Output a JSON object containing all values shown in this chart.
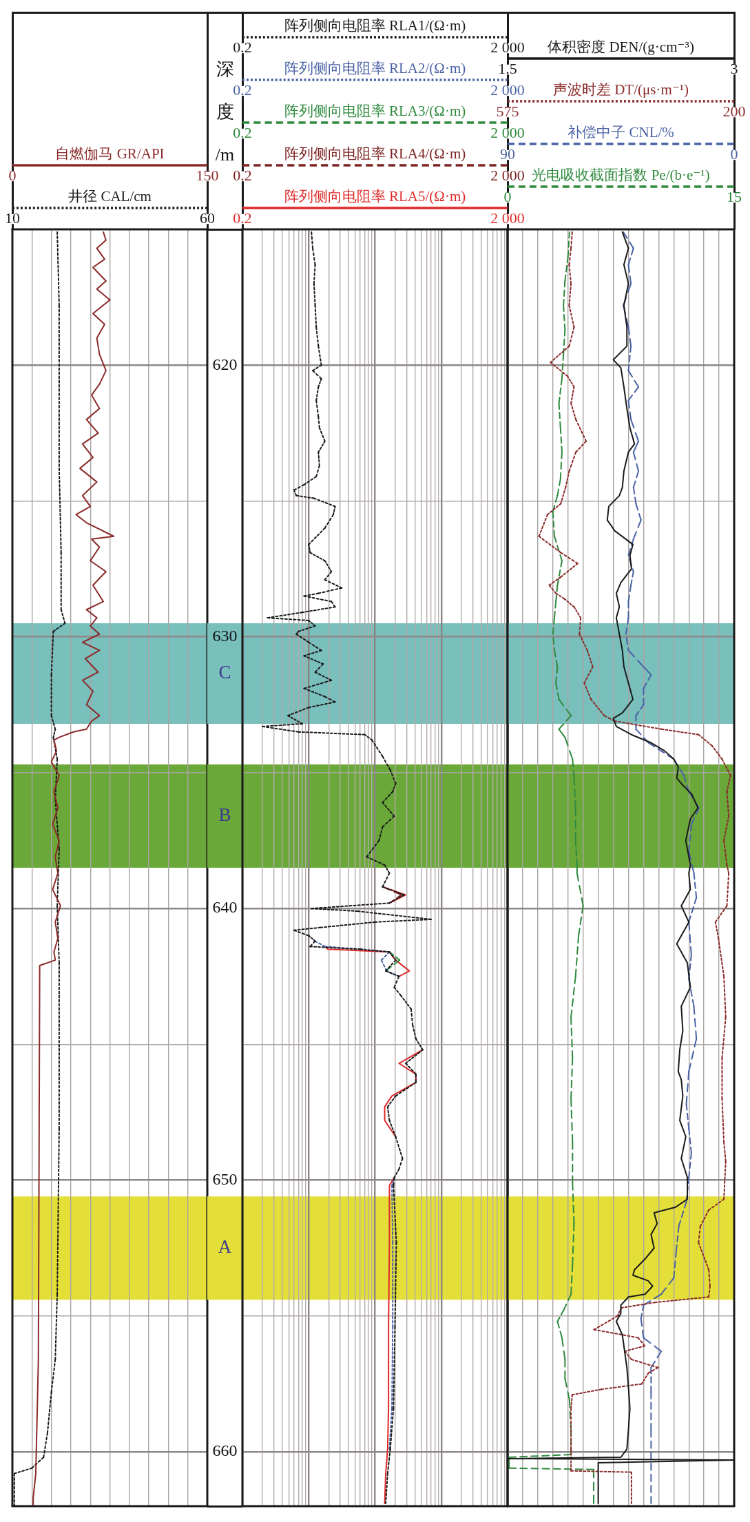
{
  "chart_data": [
    {
      "type": "line",
      "orientation": "horizontal",
      "xlabel": "自燃伽马 GR/API",
      "x2label": "井径 CAL/cm",
      "xlim": [
        0,
        150
      ],
      "xticks": [
        0,
        {
          "value": 15,
          "label": null
        },
        {
          "value": 30,
          "label": null
        },
        {
          "value": 45,
          "label": null
        },
        {
          "value": 60,
          "label": null
        },
        {
          "value": 75,
          "label": null
        },
        {
          "value": 90,
          "label": null
        },
        {
          "value": 105,
          "label": null
        },
        {
          "value": 120,
          "label": null
        },
        {
          "value": 135,
          "label": null
        },
        150
      ],
      "x2lim": [
        10,
        60
      ],
      "x2ticks": [
        10,
        60
      ],
      "ylim": [
        662,
        615
      ],
      "yticks": [
        620,
        {
          "value": 625,
          "label": null
        },
        630,
        {
          "value": 635,
          "label": null
        },
        640,
        {
          "value": 645,
          "label": null
        },
        650,
        {
          "value": 655,
          "label": null
        },
        660
      ],
      "grid": true,
      "tick_labels": "x",
      "bands": [
        {
          "axis": "y",
          "from": 629.5,
          "to": 633.2,
          "color": "#79bfbc"
        },
        {
          "axis": "y",
          "from": 634.7,
          "to": 638.5,
          "color": "#6ba83a"
        },
        {
          "axis": "y",
          "from": 650.6,
          "to": 654.4,
          "color": "#e3df38"
        }
      ],
      "series": [
        {
          "color": "#8b2a2a",
          "line_style": "solid",
          "x": [
            615.1,
            615.4,
            615.7,
            616.1,
            616.4,
            616.9,
            617.2,
            617.6,
            618.1,
            618.5,
            619.0,
            619.6,
            620.2,
            620.7,
            621.1,
            621.6,
            622.0,
            622.5,
            622.9,
            623.4,
            623.8,
            624.3,
            624.8,
            625.2,
            625.5,
            625.8,
            626.3,
            626.4,
            626.7,
            627.2,
            627.6,
            628.1,
            628.7,
            629.0,
            629.3,
            629.6,
            629.9,
            630.2,
            630.5,
            630.8,
            631.3,
            631.6,
            632.0,
            632.5,
            632.9,
            633.1,
            633.4,
            633.5,
            633.7,
            633.8,
            634.2,
            634.6,
            635.1,
            635.7,
            636.3,
            636.9,
            637.5,
            638.1,
            638.7,
            639.3,
            639.9,
            640.5,
            641.1,
            641.6,
            641.9,
            642.1,
            656.6,
            660.8,
            661.7,
            662.0
          ],
          "values": [
            70,
            72,
            65,
            71,
            62,
            72,
            65,
            75,
            62,
            71,
            65,
            67,
            72,
            67,
            61,
            67,
            57,
            66,
            54,
            62,
            52,
            65,
            54,
            60,
            49,
            57,
            78,
            61,
            67,
            60,
            72,
            62,
            70,
            57,
            65,
            60,
            67,
            54,
            67,
            56,
            66,
            54,
            62,
            57,
            67,
            61,
            57,
            47,
            36,
            32,
            34,
            30,
            36,
            32,
            35,
            31,
            36,
            33,
            35,
            31,
            37,
            33,
            35,
            32,
            33,
            21,
            20,
            18,
            16,
            16
          ]
        },
        {
          "color": "#1a1a1a",
          "line_style": "dotted",
          "axis": "x2",
          "x": [
            615.1,
            617.8,
            620.8,
            623.8,
            626.9,
            629.0,
            629.5,
            629.8,
            631.4,
            632.9,
            633.4,
            633.7,
            634.5,
            636.0,
            637.8,
            639.9,
            642.0,
            648.1,
            654.2,
            656.6,
            657.8,
            659.3,
            660.2,
            660.6,
            660.8,
            662.0
          ],
          "values": [
            21.5,
            22,
            22,
            22,
            22.5,
            22.5,
            23.5,
            20.5,
            20,
            20,
            21,
            20.5,
            21.5,
            21,
            22,
            21.5,
            22,
            22,
            21.5,
            21,
            20,
            19,
            18,
            15,
            10.5,
            10.5
          ]
        }
      ]
    },
    {
      "type": "line",
      "orientation": "horizontal",
      "xlabel": "阵列侧向电阻率 RLA1/(Ω·m)",
      "log": "x",
      "xlim": [
        0.2,
        2000
      ],
      "xticks": [
        0.2,
        {
          "value": 2000,
          "label": "2 000"
        }
      ],
      "ylim": [
        662,
        615
      ],
      "yticks": [
        620,
        630,
        640,
        650,
        660
      ],
      "tick_labels": "x",
      "series": [
        {
          "color": "#1a1a1a",
          "line_style": "dotted",
          "x": [
            615.1,
            615.7,
            616.3,
            617.0,
            617.8,
            618.6,
            619.3,
            620.0,
            620.2,
            620.5,
            620.8,
            621.3,
            621.9,
            622.3,
            622.8,
            623.2,
            623.7,
            624.1,
            624.4,
            624.6,
            624.8,
            624.9,
            625.2,
            625.5,
            626.0,
            626.6,
            626.9,
            627.2,
            627.6,
            627.9,
            628.2,
            628.4,
            628.5,
            628.7,
            628.9,
            629.1,
            629.3,
            629.4,
            629.6,
            629.8,
            629.9,
            630.2,
            630.5,
            630.7,
            631.0,
            631.3,
            631.6,
            631.9,
            632.2,
            632.4,
            632.6,
            632.9,
            633.2,
            633.3,
            633.5,
            633.6,
            633.8,
            634.4,
            634.9,
            635.4,
            635.7,
            636.1,
            636.6,
            637.0,
            637.5,
            638.1,
            638.4,
            638.7,
            639.2,
            639.5,
            639.8,
            640.0,
            640.1,
            640.4,
            640.5,
            640.7,
            640.8,
            641.0,
            641.2,
            641.4,
            641.5,
            641.6,
            641.9,
            642.3,
            642.5,
            642.9,
            643.2,
            643.7,
            644.3,
            644.8,
            645.2,
            645.7,
            646.1,
            646.4,
            646.9,
            647.3,
            647.8,
            648.4,
            649.2,
            649.6,
            649.9,
            650.2,
            652.3,
            655.4,
            658.4,
            659.9,
            660.8,
            661.9
          ],
          "values": [
            2.2,
            2.3,
            2.5,
            2.4,
            2.5,
            2.6,
            2.8,
            3.1,
            2.3,
            3.1,
            2.8,
            2.6,
            2.8,
            2.9,
            3.5,
            2.8,
            2.9,
            2.6,
            1.7,
            1.2,
            1.3,
            2.4,
            5,
            4.7,
            3.5,
            2.0,
            2.1,
            3.5,
            4.4,
            3.5,
            6.3,
            2.8,
            1.7,
            4.4,
            5,
            1.6,
            0.48,
            2.0,
            2.5,
            1.4,
            1.3,
            2.0,
            3.1,
            1.7,
            3.3,
            2.5,
            4.4,
            1.7,
            3.5,
            5,
            2.0,
            0.97,
            1.6,
            0.4,
            1.4,
            14,
            18,
            26,
            34,
            41,
            37,
            26,
            39,
            26,
            23,
            15,
            28,
            33,
            26,
            55,
            33,
            2.2,
            11,
            140,
            20,
            3.0,
            1.2,
            2.0,
            2.5,
            2.1,
            12,
            33,
            41,
            29,
            46,
            39,
            49,
            70,
            74,
            83,
            105,
            58,
            83,
            83,
            41,
            31,
            33,
            41,
            52,
            46,
            39,
            38,
            42,
            40,
            38,
            34,
            31,
            29
          ]
        }
      ]
    },
    {
      "type": "line",
      "orientation": "horizontal",
      "xlabel": "阵列侧向电阻率 RLA2/(Ω·m)",
      "log": "x",
      "xlim": [
        0.2,
        2000
      ],
      "xticks": [
        0.2,
        {
          "value": 2000,
          "label": "2 000"
        }
      ],
      "ylim": [
        662,
        615
      ],
      "yticks": [
        620,
        630,
        640,
        650,
        660
      ],
      "tick_labels": "x",
      "series": [
        {
          "color": "#4a62a6",
          "line_style": "dotted",
          "x": [
            641.2,
            641.4,
            641.5,
            641.6,
            641.9,
            642.3,
            642.5,
            646.0,
            649.9,
            650.2,
            652.3,
            655.4,
            658.4,
            659.9
          ],
          "values": [
            2.5,
            3.5,
            12,
            33,
            25,
            30,
            46,
            null,
            39,
            36,
            37,
            37,
            36,
            33
          ]
        }
      ]
    },
    {
      "type": "line",
      "orientation": "horizontal",
      "xlabel": "阵列侧向电阻率 RLA3/(Ω·m)",
      "log": "x",
      "xlim": [
        0.2,
        2000
      ],
      "xticks": [
        0.2,
        {
          "value": 2000,
          "label": "2 000"
        }
      ],
      "ylim": [
        662,
        615
      ],
      "yticks": [
        620,
        630,
        640,
        650,
        660
      ],
      "tick_labels": "x",
      "series": [
        {
          "color": "#2f8a3e",
          "line_style": "dashed",
          "x": [
            641.6,
            641.9,
            642.3
          ],
          "values": [
            33,
            47,
            29
          ]
        }
      ]
    },
    {
      "type": "line",
      "orientation": "horizontal",
      "xlabel": "阵列侧向电阻率 RLA4/(Ω·m)",
      "log": "x",
      "xlim": [
        0.2,
        2000
      ],
      "xticks": [
        0.2,
        {
          "value": 2000,
          "label": "2 000"
        }
      ],
      "ylim": [
        662,
        615
      ],
      "yticks": [
        620,
        630,
        640,
        650,
        660
      ],
      "tick_labels": "x",
      "series": [
        {
          "color": "#7d2222",
          "line_style": "dashed",
          "x": [
            639.2,
            639.5,
            639.8
          ],
          "values": [
            26,
            50,
            33
          ]
        }
      ]
    },
    {
      "type": "line",
      "orientation": "horizontal",
      "ylabel": "深度/m",
      "xlabel": "阵列侧向电阻率 RLA5/(Ω·m)",
      "log": "x",
      "xlim": [
        0.2,
        2000
      ],
      "xticks": [
        0.2,
        {
          "value": 0.4,
          "label": null
        },
        {
          "value": 0.6,
          "label": null
        },
        {
          "value": 0.8,
          "label": null
        },
        {
          "value": 1,
          "label": null
        },
        {
          "value": 1.2,
          "label": null
        },
        {
          "value": 1.4,
          "label": null
        },
        {
          "value": 1.6,
          "label": null
        },
        {
          "value": 1.8,
          "label": null
        },
        {
          "value": 2,
          "label": null
        },
        {
          "value": 4,
          "label": null
        },
        {
          "value": 6,
          "label": null
        },
        {
          "value": 8,
          "label": null
        },
        {
          "value": 10,
          "label": null
        },
        {
          "value": 12,
          "label": null
        },
        {
          "value": 14,
          "label": null
        },
        {
          "value": 16,
          "label": null
        },
        {
          "value": 18,
          "label": null
        },
        {
          "value": 20,
          "label": null
        },
        {
          "value": 40,
          "label": null
        },
        {
          "value": 60,
          "label": null
        },
        {
          "value": 80,
          "label": null
        },
        {
          "value": 100,
          "label": null
        },
        {
          "value": 120,
          "label": null
        },
        {
          "value": 140,
          "label": null
        },
        {
          "value": 160,
          "label": null
        },
        {
          "value": 180,
          "label": null
        },
        {
          "value": 200,
          "label": null
        },
        {
          "value": 400,
          "label": null
        },
        {
          "value": 600,
          "label": null
        },
        {
          "value": 800,
          "label": null
        },
        {
          "value": 1000,
          "label": null
        },
        {
          "value": 1200,
          "label": null
        },
        {
          "value": 1400,
          "label": null
        },
        {
          "value": 1600,
          "label": null
        },
        {
          "value": 1800,
          "label": null
        },
        {
          "value": 2000,
          "label": "2 000"
        }
      ],
      "ylim": [
        662,
        615
      ],
      "yticks": [
        620,
        {
          "value": 625,
          "label": null
        },
        630,
        {
          "value": 635,
          "label": null
        },
        640,
        {
          "value": 645,
          "label": null
        },
        650,
        {
          "value": 655,
          "label": null
        },
        660
      ],
      "grid": true,
      "bands": [
        {
          "axis": "y",
          "from": 629.5,
          "to": 633.2,
          "label": "C",
          "color": "#79bfbc"
        },
        {
          "axis": "y",
          "from": 634.7,
          "to": 638.5,
          "label": "B",
          "color": "#6ba83a"
        },
        {
          "axis": "y",
          "from": 650.6,
          "to": 654.4,
          "label": "A",
          "color": "#e3df38"
        }
      ],
      "series": [
        {
          "color": "#e02a2a",
          "line_style": "solid",
          "x": [
            639.2,
            639.5,
            639.8,
            640.5,
            641.4,
            641.5,
            641.6,
            641.9,
            642.3,
            642.5,
            643.5,
            645.2,
            645.7,
            646.1,
            646.4,
            646.9,
            647.3,
            647.8,
            648.4,
            649.0,
            649.9,
            650.2,
            652.3,
            655.4,
            658.4,
            659.9,
            660.8,
            661.9
          ],
          "values": [
            26,
            58,
            33,
            null,
            3.5,
            3.9,
            33,
            41,
            66,
            46,
            null,
            105,
            46,
            83,
            83,
            36,
            28,
            28,
            41,
            null,
            39,
            33,
            33,
            32,
            32,
            31,
            29,
            28
          ]
        }
      ]
    },
    {
      "type": "line",
      "orientation": "horizontal",
      "xlabel": "体积密度 DEN/(g·cm⁻³)",
      "x2label": "声波时差 DT/(μs·m⁻¹)",
      "xlim": [
        1.5,
        3
      ],
      "xticks": [
        1.5,
        3
      ],
      "x2lim": [
        575,
        200
      ],
      "x2ticks": [
        575,
        200
      ],
      "ylim": [
        662,
        615
      ],
      "yticks": [
        620,
        630,
        640,
        650,
        660
      ],
      "tick_labels": "x",
      "series": [
        {
          "color": "#1a1a1a",
          "line_style": "solid",
          "x": [
            615.1,
            615.7,
            616.3,
            617.0,
            617.8,
            618.6,
            619.3,
            619.8,
            620.1,
            620.8,
            621.6,
            622.3,
            622.9,
            623.2,
            623.9,
            624.5,
            624.8,
            625.2,
            625.7,
            626.1,
            626.6,
            627.0,
            627.5,
            628.0,
            628.4,
            628.9,
            629.3,
            629.9,
            630.5,
            631.1,
            631.7,
            632.3,
            632.8,
            633.0,
            633.3,
            633.6,
            633.9,
            634.2,
            634.5,
            634.8,
            635.2,
            635.4,
            635.8,
            636.3,
            636.7,
            637.5,
            638.4,
            638.7,
            639.3,
            639.9,
            640.5,
            641.3,
            642.0,
            642.9,
            643.6,
            644.5,
            645.2,
            646.0,
            646.3,
            646.9,
            647.8,
            648.4,
            649.2,
            649.9,
            650.7,
            651.0,
            651.2,
            651.6,
            652.0,
            652.5,
            652.9,
            653.3,
            653.5,
            653.7,
            653.9,
            654.2,
            654.3,
            654.6,
            654.9,
            655.2,
            655.7,
            656.1,
            656.9,
            657.6,
            658.4,
            659.2,
            659.9,
            660.2,
            660.25,
            660.3,
            660.4,
            661.9
          ],
          "values": [
            2.26,
            2.3,
            2.27,
            2.3,
            2.27,
            2.29,
            2.29,
            2.2,
            2.25,
            2.27,
            2.29,
            2.31,
            2.34,
            2.3,
            2.27,
            2.26,
            2.24,
            2.17,
            2.16,
            2.21,
            2.33,
            2.31,
            2.32,
            2.25,
            2.22,
            2.24,
            2.22,
            2.24,
            2.26,
            2.27,
            2.3,
            2.33,
            2.26,
            2.2,
            2.22,
            2.32,
            2.45,
            2.54,
            2.6,
            2.63,
            2.62,
            2.65,
            2.72,
            2.76,
            2.71,
            2.68,
            2.71,
            2.7,
            2.71,
            2.65,
            2.7,
            2.62,
            2.69,
            2.71,
            2.65,
            2.66,
            2.64,
            2.63,
            2.65,
            2.66,
            2.64,
            2.68,
            2.65,
            2.69,
            2.69,
            2.61,
            2.47,
            2.49,
            2.45,
            2.47,
            2.41,
            2.34,
            2.33,
            2.43,
            2.46,
            2.41,
            2.3,
            2.25,
            2.25,
            2.22,
            2.26,
            2.27,
            2.29,
            2.3,
            2.31,
            2.3,
            2.29,
            2.25,
            1.5,
            3,
            2.1,
            2.1
          ]
        },
        {
          "color": "#8b2a2a",
          "line_style": "dotted",
          "axis": "x2",
          "x": [
            615.1,
            615.7,
            616.3,
            617.0,
            617.8,
            618.6,
            619.3,
            619.9,
            620.4,
            620.8,
            621.4,
            622.0,
            622.8,
            623.2,
            623.9,
            624.5,
            625.1,
            625.5,
            626.3,
            626.9,
            627.3,
            627.8,
            628.1,
            628.4,
            628.6,
            628.9,
            629.3,
            629.9,
            630.5,
            631.1,
            631.7,
            632.3,
            632.9,
            633.1,
            633.4,
            633.6,
            634.0,
            634.5,
            635.1,
            635.7,
            636.6,
            637.5,
            638.4,
            638.7,
            639.9,
            640.5,
            641.1,
            642.5,
            644.0,
            645.5,
            647.0,
            648.6,
            649.3,
            650.7,
            651.1,
            651.7,
            652.3,
            653.3,
            653.9,
            654.3,
            654.5,
            654.7,
            655.0,
            655.5,
            655.8,
            656.1,
            656.3,
            656.6,
            656.9,
            657.1,
            657.5,
            657.7,
            657.9,
            658.4,
            659.9,
            660.7,
            660.75,
            661.9
          ],
          "values": [
            468,
            470,
            473,
            470,
            473,
            465,
            473,
            504,
            476,
            465,
            470,
            462,
            445,
            462,
            473,
            479,
            487,
            509,
            523,
            487,
            459,
            487,
            506,
            495,
            481,
            465,
            454,
            456,
            443,
            434,
            448,
            437,
            415,
            398,
            320,
            259,
            237,
            220,
            206,
            212,
            209,
            217,
            212,
            209,
            212,
            231,
            226,
            217,
            214,
            220,
            220,
            217,
            214,
            217,
            242,
            256,
            259,
            242,
            240,
            242,
            331,
            387,
            393,
            432,
            359,
            348,
            381,
            370,
            326,
            342,
            353,
            420,
            468,
            470,
            470,
            470,
            370,
            370
          ]
        }
      ]
    },
    {
      "type": "line",
      "orientation": "horizontal",
      "xlabel": "补偿中子 CNL/%",
      "x2label": "光电吸收截面指数 Pe/(b·e⁻¹)",
      "xlim": [
        90,
        0
      ],
      "xticks": [
        90,
        {
          "value": 84,
          "label": null
        },
        {
          "value": 78,
          "label": null
        },
        {
          "value": 72,
          "label": null
        },
        {
          "value": 66,
          "label": null
        },
        {
          "value": 60,
          "label": null
        },
        {
          "value": 54,
          "label": null
        },
        {
          "value": 48,
          "label": null
        },
        {
          "value": 42,
          "label": null
        },
        {
          "value": 36,
          "label": null
        },
        {
          "value": 30,
          "label": null
        },
        {
          "value": 24,
          "label": null
        },
        {
          "value": 18,
          "label": null
        },
        {
          "value": 12,
          "label": null
        },
        {
          "value": 6,
          "label": null
        },
        0
      ],
      "x2lim": [
        0,
        15
      ],
      "x2ticks": [
        0,
        15
      ],
      "ylim": [
        662,
        615
      ],
      "yticks": [
        620,
        {
          "value": 625,
          "label": null
        },
        630,
        {
          "value": 635,
          "label": null
        },
        640,
        {
          "value": 645,
          "label": null
        },
        650,
        {
          "value": 655,
          "label": null
        },
        660
      ],
      "grid": true,
      "tick_labels": "x",
      "bands": [
        {
          "axis": "y",
          "from": 629.5,
          "to": 633.2,
          "color": "#79bfbc"
        },
        {
          "axis": "y",
          "from": 634.7,
          "to": 638.5,
          "color": "#6ba83a"
        },
        {
          "axis": "y",
          "from": 650.6,
          "to": 654.4,
          "color": "#e3df38"
        }
      ],
      "series": [
        {
          "color": "#4a62a6",
          "line_style": "dashed",
          "x": [
            615.1,
            615.7,
            616.3,
            617.0,
            617.8,
            618.6,
            619.3,
            620.2,
            620.8,
            621.3,
            622.0,
            622.8,
            623.2,
            623.9,
            624.5,
            625.1,
            625.7,
            626.4,
            627.0,
            627.6,
            628.1,
            628.7,
            629.3,
            629.9,
            630.5,
            631.1,
            631.4,
            631.9,
            632.5,
            632.9,
            633.4,
            633.9,
            634.5,
            635.1,
            635.7,
            636.3,
            636.9,
            637.9,
            638.7,
            639.6,
            640.5,
            641.7,
            642.6,
            643.6,
            644.8,
            646.0,
            647.2,
            648.1,
            649.0,
            649.9,
            650.8,
            651.7,
            652.6,
            653.6,
            654.2,
            654.6,
            655.1,
            655.8,
            656.3,
            656.9,
            657.8,
            659.2,
            661.9
          ],
          "values": [
            44,
            40,
            42,
            41,
            44,
            42,
            41,
            42,
            38,
            42,
            41,
            38,
            40,
            38,
            40,
            39,
            37,
            40,
            42,
            40,
            41,
            42,
            42,
            43,
            42,
            36,
            33,
            36,
            36,
            39,
            39,
            34,
            24,
            20,
            18,
            14,
            17,
            18,
            16,
            15,
            18,
            17,
            18,
            16,
            15,
            18,
            19,
            18,
            17,
            18,
            19,
            22,
            23,
            24,
            29,
            36,
            37,
            36,
            29,
            33,
            33,
            33,
            33
          ]
        },
        {
          "color": "#2f8a3e",
          "line_style": "dashed",
          "axis": "x2",
          "x": [
            615.1,
            616.0,
            616.9,
            617.8,
            618.7,
            619.6,
            620.5,
            621.4,
            622.3,
            623.2,
            624.2,
            624.8,
            625.4,
            626.3,
            627.2,
            628.1,
            628.7,
            629.3,
            629.9,
            630.5,
            631.1,
            631.7,
            632.3,
            632.9,
            633.4,
            633.7,
            634.5,
            635.2,
            636.3,
            637.5,
            638.4,
            638.7,
            639.9,
            641.0,
            642.5,
            644.0,
            645.5,
            647.0,
            648.6,
            650.1,
            651.6,
            653.1,
            654.2,
            654.8,
            655.2,
            655.8,
            656.6,
            657.3,
            658.1,
            659.2,
            660.1,
            660.2,
            660.6,
            660.65,
            661.9
          ],
          "values": [
            4.1,
            4.0,
            3.8,
            3.7,
            3.8,
            3.7,
            3.6,
            3.4,
            3.5,
            3.6,
            3.5,
            3.3,
            3.0,
            3.1,
            3.6,
            3.3,
            3.2,
            3.1,
            3.0,
            3.1,
            3.3,
            3.2,
            3.4,
            4.2,
            3.4,
            3.8,
            4.3,
            4.4,
            4.5,
            4.5,
            4.6,
            4.6,
            5.0,
            4.7,
            4.5,
            4.2,
            4.3,
            4.2,
            4.3,
            4.3,
            4.4,
            4.3,
            4.2,
            3.7,
            3.3,
            3.6,
            3.8,
            3.8,
            4.1,
            4.2,
            4.2,
            0.1,
            0.1,
            5.7,
            5.7
          ]
        }
      ]
    }
  ]
}
